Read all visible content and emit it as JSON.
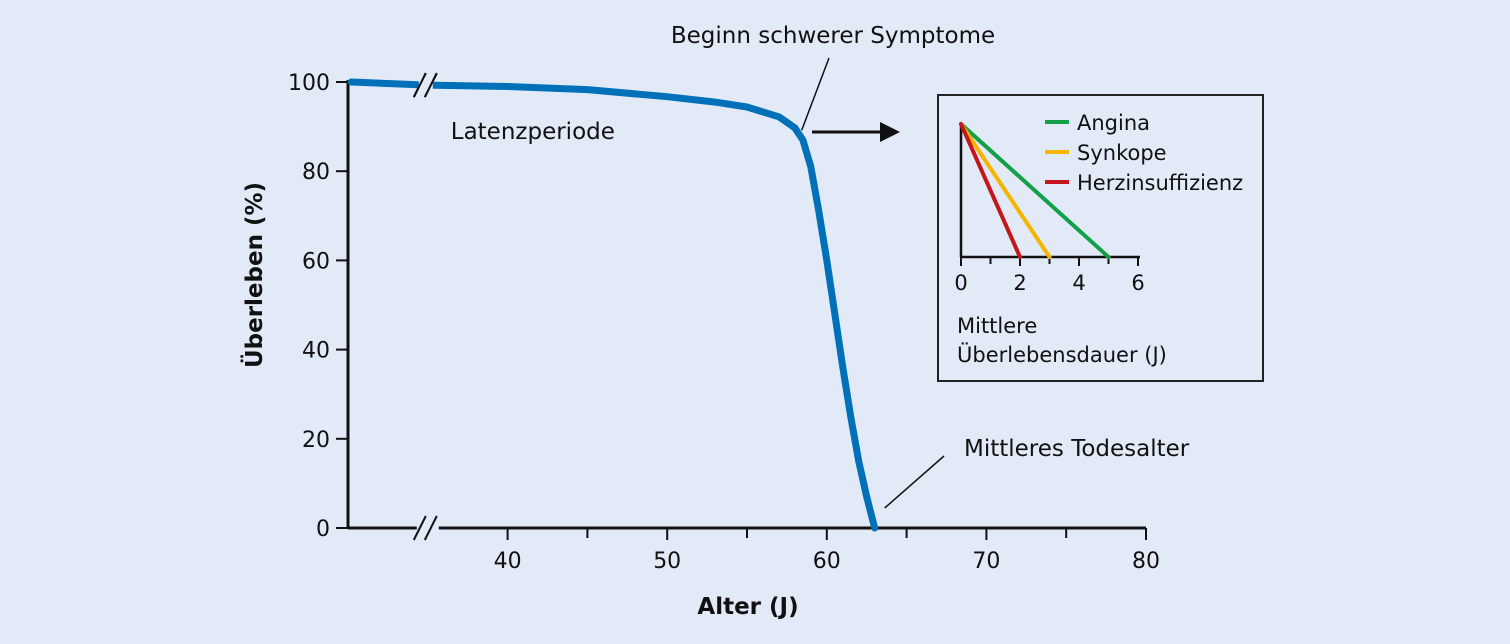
{
  "chart_data": [
    {
      "type": "line",
      "title": "",
      "xlabel": "Alter (J)",
      "ylabel": "Überleben (%)",
      "xlim": [
        30,
        80
      ],
      "ylim": [
        0,
        100
      ],
      "x_ticks": [
        40,
        50,
        60,
        70,
        80
      ],
      "x_minor_ticks": [
        35,
        45,
        55,
        65,
        75
      ],
      "y_ticks": [
        0,
        20,
        40,
        60,
        80,
        100
      ],
      "axis_break": "x and y axis near 35",
      "grid": false,
      "series": [
        {
          "color": "#0070b8",
          "x": [
            30.2,
            35,
            40,
            45,
            50,
            53,
            55,
            57,
            58,
            58.5,
            59,
            59.5,
            60,
            60.5,
            61,
            61.5,
            62,
            62.5,
            63
          ],
          "y": [
            100,
            99.3,
            99,
            98.3,
            96.7,
            95.5,
            94.4,
            92.2,
            89.7,
            87,
            81,
            71,
            60,
            48,
            36,
            25,
            15,
            7,
            0
          ]
        }
      ],
      "annotations": [
        {
          "text": "Latenzperiode",
          "x": 36,
          "y": 89
        },
        {
          "text": "Beginn schwerer Symptome",
          "x": 58.3,
          "y": 88.5
        },
        {
          "text": "Mittleres Todesalter",
          "x": 63,
          "y": 0
        }
      ]
    },
    {
      "type": "line",
      "xlabel": "Mittlere Überlebensdauer (J)",
      "ylabel": "",
      "xlim": [
        0,
        6
      ],
      "x_ticks": [
        0,
        2,
        4,
        6
      ],
      "x_minor_ticks": [
        1,
        3,
        5
      ],
      "ylim": [
        0,
        1
      ],
      "legend": "top-right",
      "series": [
        {
          "name": "Angina",
          "color": "#13a048",
          "x": [
            0,
            5
          ],
          "y": [
            1,
            0
          ]
        },
        {
          "name": "Synkope",
          "color": "#f5b400",
          "x": [
            0,
            3
          ],
          "y": [
            1,
            0
          ]
        },
        {
          "name": "Herzinsuffizienz",
          "color": "#c4161c",
          "x": [
            0,
            2
          ],
          "y": [
            1,
            0
          ]
        }
      ]
    }
  ]
}
